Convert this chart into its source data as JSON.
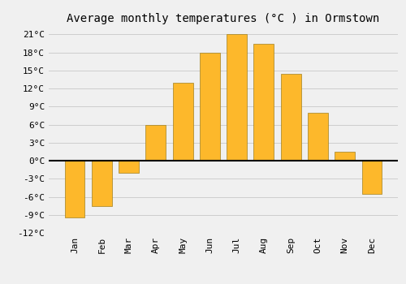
{
  "title": "Average monthly temperatures (°C ) in Ormstown",
  "months": [
    "Jan",
    "Feb",
    "Mar",
    "Apr",
    "May",
    "Jun",
    "Jul",
    "Aug",
    "Sep",
    "Oct",
    "Nov",
    "Dec"
  ],
  "values": [
    -9.5,
    -7.5,
    -2.0,
    6.0,
    13.0,
    18.0,
    21.0,
    19.5,
    14.5,
    8.0,
    1.5,
    -5.5
  ],
  "bar_color": "#FDB82B",
  "bar_edge_color": "#A08020",
  "bar_edge_width": 0.5,
  "ylim": [
    -12,
    22
  ],
  "yticks": [
    -12,
    -9,
    -6,
    -3,
    0,
    3,
    6,
    9,
    12,
    15,
    18,
    21
  ],
  "ytick_labels": [
    "-12°C",
    "-9°C",
    "-6°C",
    "-3°C",
    "0°C",
    "3°C",
    "6°C",
    "9°C",
    "12°C",
    "15°C",
    "18°C",
    "21°C"
  ],
  "title_fontsize": 10,
  "tick_fontsize": 8,
  "background_color": "#F0F0F0",
  "grid_color": "#C8C8C8",
  "zero_line_color": "#000000",
  "bar_width": 0.75
}
